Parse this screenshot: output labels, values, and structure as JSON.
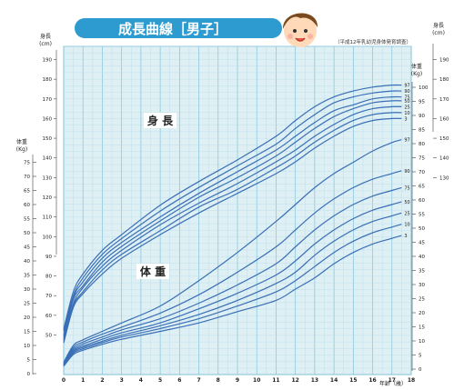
{
  "title": "成長曲線［男子］",
  "colors": {
    "title_bar": "#2e9bd0",
    "grid_fill": "#dff0f5",
    "grid_minor": "#b8dbe8",
    "grid_major": "#82c2da",
    "curve": "#3a6fb5",
    "text": "#222222"
  },
  "chart_data": {
    "type": "line",
    "title": "成長曲線［男子］",
    "source_note": "（平成12年乳幼児身体発育調査）",
    "x_axis": {
      "label": "年齢（歳）",
      "range": [
        0,
        18
      ],
      "ticks": [
        0,
        1,
        2,
        3,
        4,
        5,
        6,
        7,
        8,
        9,
        10,
        11,
        12,
        13,
        14,
        15,
        16,
        17,
        18
      ]
    },
    "height_axis_left": {
      "label": "身長",
      "unit": "(cm)",
      "range": [
        45,
        190
      ],
      "ticks": [
        50,
        60,
        70,
        80,
        90,
        100,
        110,
        120,
        130,
        140,
        150,
        160,
        170,
        180,
        190
      ]
    },
    "height_axis_right": {
      "label": "身長",
      "unit": "(cm)",
      "ticks": [
        130,
        140,
        150,
        160,
        170,
        180,
        190
      ]
    },
    "weight_axis_left": {
      "label": "体重",
      "unit": "(Kg)",
      "ticks": [
        0,
        5,
        10,
        15,
        20,
        25,
        30,
        35,
        40,
        45,
        50,
        55,
        60,
        65,
        70,
        75
      ]
    },
    "weight_axis_right": {
      "label": "体重",
      "unit": "(Kg)",
      "ticks": [
        0,
        5,
        10,
        15,
        20,
        25,
        30,
        35,
        40,
        45,
        50,
        55,
        60,
        65,
        70,
        75,
        80,
        85,
        90,
        95,
        100
      ]
    },
    "section_labels": {
      "height": "身 長",
      "weight": "体 重"
    },
    "height_percentiles": [
      {
        "name": "97",
        "x": [
          0,
          0.5,
          1,
          2,
          3,
          5,
          7,
          9,
          11,
          12,
          13,
          14,
          15,
          16,
          17,
          17.5
        ],
        "y": [
          53,
          72,
          81,
          93,
          101,
          116,
          128,
          139,
          151,
          159,
          166,
          171,
          174,
          176,
          177,
          177
        ]
      },
      {
        "name": "90",
        "x": [
          0,
          0.5,
          1,
          2,
          3,
          5,
          7,
          9,
          11,
          12,
          13,
          14,
          15,
          16,
          17,
          17.5
        ],
        "y": [
          52,
          70,
          79,
          91,
          99,
          113,
          125,
          136,
          147,
          155,
          162,
          168,
          171,
          173,
          174,
          174
        ]
      },
      {
        "name": "75",
        "x": [
          0,
          0.5,
          1,
          2,
          3,
          5,
          7,
          9,
          11,
          12,
          13,
          14,
          15,
          16,
          17,
          17.5
        ],
        "y": [
          50,
          69,
          77,
          89,
          97,
          110,
          122,
          133,
          144,
          151,
          158,
          164,
          167,
          170,
          171,
          171
        ]
      },
      {
        "name": "50",
        "x": [
          0,
          0.5,
          1,
          2,
          3,
          5,
          7,
          9,
          11,
          12,
          13,
          14,
          15,
          16,
          17,
          17.5
        ],
        "y": [
          49,
          68,
          75,
          87,
          95,
          108,
          120,
          130,
          141,
          148,
          155,
          161,
          165,
          168,
          169,
          169
        ]
      },
      {
        "name": "25",
        "x": [
          0,
          0.5,
          1,
          2,
          3,
          5,
          7,
          9,
          11,
          12,
          13,
          14,
          15,
          16,
          17,
          17.5
        ],
        "y": [
          48,
          66,
          74,
          85,
          93,
          106,
          117,
          127,
          138,
          144,
          151,
          157,
          162,
          165,
          166,
          166
        ]
      },
      {
        "name": "10",
        "x": [
          0,
          0.5,
          1,
          2,
          3,
          5,
          7,
          9,
          11,
          12,
          13,
          14,
          15,
          16,
          17,
          17.5
        ],
        "y": [
          47,
          65,
          72,
          83,
          91,
          103,
          115,
          124,
          135,
          141,
          148,
          154,
          159,
          162,
          163,
          163
        ]
      },
      {
        "name": "3",
        "x": [
          0,
          0.5,
          1,
          2,
          3,
          5,
          7,
          9,
          11,
          12,
          13,
          14,
          15,
          16,
          17,
          17.5
        ],
        "y": [
          46,
          64,
          71,
          81,
          89,
          101,
          112,
          122,
          132,
          138,
          145,
          151,
          156,
          159,
          160,
          160
        ]
      }
    ],
    "weight_percentiles": [
      {
        "name": "97",
        "x": [
          0,
          0.5,
          1,
          2,
          3,
          5,
          7,
          9,
          11,
          12,
          13,
          14,
          15,
          16,
          17,
          17.5
        ],
        "y": [
          4,
          10,
          12,
          15,
          18,
          24,
          33,
          43,
          54,
          60,
          66,
          71,
          75,
          79,
          82,
          83
        ]
      },
      {
        "name": "90",
        "x": [
          0,
          0.5,
          1,
          2,
          3,
          5,
          7,
          9,
          11,
          12,
          13,
          14,
          15,
          16,
          17,
          17.5
        ],
        "y": [
          3.7,
          9.3,
          11.2,
          14,
          16.5,
          21.5,
          28,
          36,
          45,
          51,
          57,
          62,
          66,
          69,
          71,
          72
        ]
      },
      {
        "name": "75",
        "x": [
          0,
          0.5,
          1,
          2,
          3,
          5,
          7,
          9,
          11,
          12,
          13,
          14,
          15,
          16,
          17,
          17.5
        ],
        "y": [
          3.4,
          8.7,
          10.5,
          13,
          15.5,
          19.5,
          25,
          31.5,
          39,
          45,
          51,
          56,
          60,
          63,
          65,
          66
        ]
      },
      {
        "name": "50",
        "x": [
          0,
          0.5,
          1,
          2,
          3,
          5,
          7,
          9,
          11,
          12,
          13,
          14,
          15,
          16,
          17,
          17.5
        ],
        "y": [
          3.2,
          8.2,
          9.8,
          12.2,
          14.5,
          18,
          23,
          28.5,
          35,
          40,
          46,
          51,
          55,
          58,
          60,
          61
        ]
      },
      {
        "name": "25",
        "x": [
          0,
          0.5,
          1,
          2,
          3,
          5,
          7,
          9,
          11,
          12,
          13,
          14,
          15,
          16,
          17,
          17.5
        ],
        "y": [
          3,
          7.7,
          9.3,
          11.5,
          13.6,
          17,
          21,
          26,
          32,
          36,
          42,
          47,
          51,
          54,
          56,
          57
        ]
      },
      {
        "name": "10",
        "x": [
          0,
          0.5,
          1,
          2,
          3,
          5,
          7,
          9,
          11,
          12,
          13,
          14,
          15,
          16,
          17,
          17.5
        ],
        "y": [
          2.8,
          7.3,
          8.8,
          11,
          13,
          16,
          19.5,
          24,
          29,
          33,
          38,
          43,
          47,
          50,
          52,
          53
        ]
      },
      {
        "name": "3",
        "x": [
          0,
          0.5,
          1,
          2,
          3,
          5,
          7,
          9,
          11,
          12,
          13,
          14,
          15,
          16,
          17,
          17.5
        ],
        "y": [
          2.6,
          6.8,
          8.3,
          10.4,
          12.2,
          15,
          18,
          22,
          26,
          30,
          34,
          39,
          43,
          46,
          48,
          49
        ]
      }
    ],
    "grid": true
  }
}
